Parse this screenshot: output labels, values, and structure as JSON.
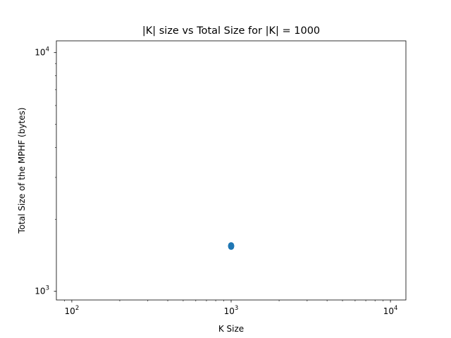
{
  "chart_data": {
    "type": "scatter",
    "title": "|K| size vs Total Size for |K| = 1000",
    "xlabel": "K Size",
    "ylabel": "Total Size of the MPHF (bytes)",
    "xscale": "log",
    "yscale": "log",
    "xlim": [
      80,
      12500
    ],
    "ylim": [
      920,
      11200
    ],
    "grid": false,
    "marker_color": "#1f77b4",
    "x_ticks": [
      {
        "value": 100,
        "base": "10",
        "exp": "2"
      },
      {
        "value": 1000,
        "base": "10",
        "exp": "3"
      },
      {
        "value": 10000,
        "base": "10",
        "exp": "4"
      }
    ],
    "y_ticks": [
      {
        "value": 1000,
        "base": "10",
        "exp": "3"
      },
      {
        "value": 10000,
        "base": "10",
        "exp": "4"
      }
    ],
    "series": [
      {
        "x": [
          1000,
          1000,
          1000,
          1000,
          1000,
          1000,
          1000,
          1000,
          1000,
          1000
        ],
        "y": [
          1535,
          1538,
          1541,
          1544,
          1547,
          1550,
          1552,
          1555,
          1558,
          1560
        ]
      }
    ]
  }
}
